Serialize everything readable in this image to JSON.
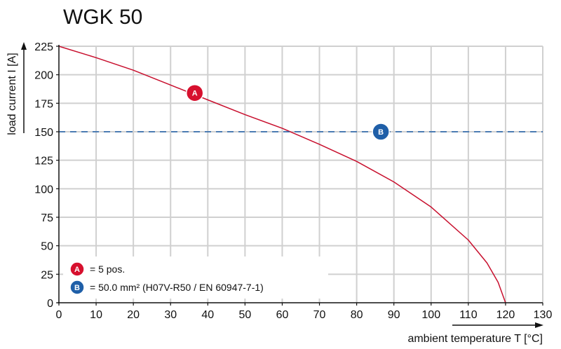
{
  "chart_data": {
    "type": "line",
    "title": "WGK 50",
    "xlabel": "ambient temperature T [°C]",
    "ylabel": "load current I [A]",
    "xlim": [
      0,
      130
    ],
    "ylim": [
      0,
      225
    ],
    "xticks": [
      0,
      10,
      20,
      30,
      40,
      50,
      60,
      70,
      80,
      90,
      100,
      110,
      120,
      130
    ],
    "yticks": [
      0,
      25,
      50,
      75,
      100,
      125,
      150,
      175,
      200,
      225
    ],
    "grid": true,
    "series": [
      {
        "marker": "A",
        "color": "#c8102e",
        "style": "solid",
        "x": [
          0,
          10,
          20,
          30,
          40,
          50,
          60,
          70,
          80,
          90,
          100,
          110,
          115,
          118,
          120
        ],
        "y": [
          225,
          215,
          204,
          191,
          178,
          165,
          153,
          139,
          124,
          106,
          84,
          55,
          35,
          18,
          0
        ]
      },
      {
        "marker": "B",
        "color": "#1f5fa8",
        "style": "dashed",
        "x": [
          0,
          130
        ],
        "y": [
          150,
          150
        ]
      }
    ],
    "markers": [
      {
        "label": "A",
        "x": 36.5,
        "y": 184,
        "color": "#d7102e"
      },
      {
        "label": "B",
        "x": 86.5,
        "y": 150,
        "color": "#1f5fa8"
      }
    ],
    "legend": {
      "placement": "bottom-left",
      "items": [
        {
          "marker": "A",
          "text": "= 5 pos.",
          "color": "#d7102e"
        },
        {
          "marker": "B",
          "text": "= 50.0 mm² (H07V-R50 / EN 60947-7-1)",
          "color": "#1f5fa8"
        }
      ]
    },
    "grid_color": "#d0d0d0"
  }
}
